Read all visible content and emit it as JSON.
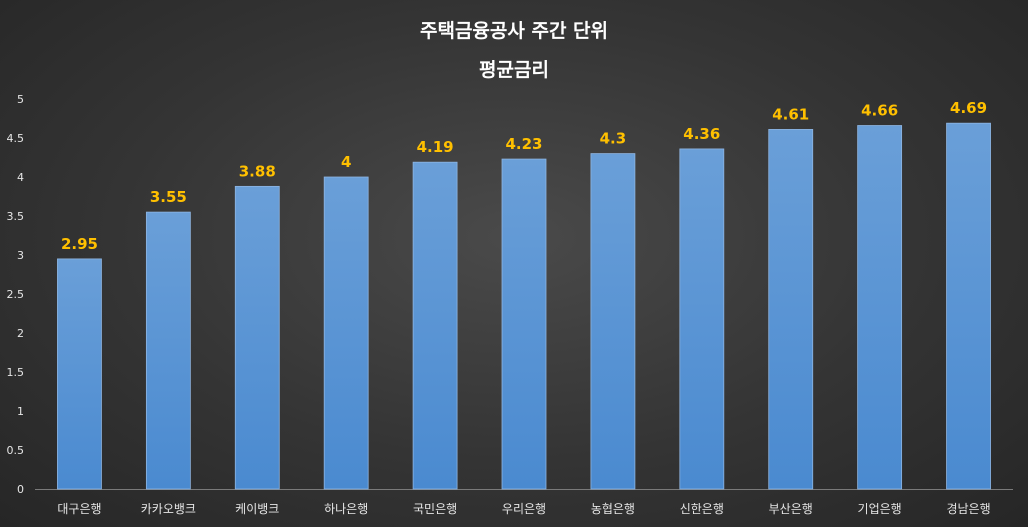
{
  "chart_data": {
    "type": "bar",
    "title": [
      "주택금융공사 주간 단위",
      "평균금리"
    ],
    "categories": [
      "대구은행",
      "카카오뱅크",
      "케이뱅크",
      "하나은행",
      "국민은행",
      "우리은행",
      "농협은행",
      "신한은행",
      "부산은행",
      "기업은행",
      "경남은행"
    ],
    "values": [
      2.95,
      3.55,
      3.88,
      4,
      4.19,
      4.23,
      4.3,
      4.36,
      4.61,
      4.66,
      4.69
    ],
    "value_labels": [
      "2.95",
      "3.55",
      "3.88",
      "4",
      "4.19",
      "4.23",
      "4.3",
      "4.36",
      "4.61",
      "4.66",
      "4.69"
    ],
    "y_ticks": [
      "0",
      "0.5",
      "1",
      "1.5",
      "2",
      "2.5",
      "3",
      "3.5",
      "4",
      "4.5",
      "5"
    ],
    "ylim": [
      0,
      5
    ],
    "xlabel": "",
    "ylabel": "",
    "grid": false,
    "legend": "none",
    "colors": {
      "bar_top": "#6a9fd8",
      "bar_bottom": "#4a8ad0",
      "value_label": "#ffc000",
      "axis_text": "#e6e6e6"
    }
  }
}
